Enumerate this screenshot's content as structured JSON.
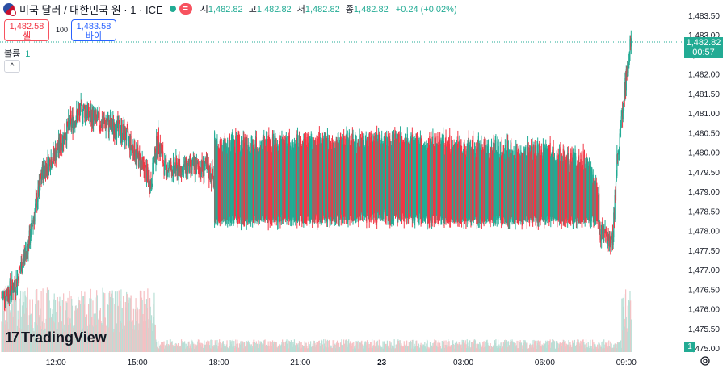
{
  "header": {
    "title": "미국 달러 / 대한민국 원 · 1 · ICE",
    "eq_symbol": "=",
    "open_label": "시",
    "open": "1,482.82",
    "high_label": "고",
    "high": "1,482.82",
    "low_label": "저",
    "low": "1,482.82",
    "close_label": "종",
    "close": "1,482.82",
    "change": "+0.24 (+0.02%)"
  },
  "trade": {
    "sell_price": "1,482.58",
    "sell_label": "셀",
    "buy_price": "1,483.58",
    "buy_label": "바이",
    "quantity": "100"
  },
  "volume_indicator": {
    "label": "볼륨",
    "value": "1"
  },
  "price_tag": {
    "price": "1,482.82",
    "countdown": "00:57"
  },
  "volume_tag": "1",
  "branding": {
    "logo_text": "TradingView"
  },
  "colors": {
    "up": "#22ab94",
    "down": "#f23645",
    "price_line": "#22ab94",
    "volume_up": "#b9dfd6",
    "volume_down": "#f6c0c3"
  },
  "chart_data": {
    "type": "candlestick",
    "interval": "1 minute",
    "y_axis": {
      "min": 1475.0,
      "max": 1483.5,
      "ticks": [
        "1,483.50",
        "1,483.00",
        "1,482.50",
        "1,482.00",
        "1,481.50",
        "1,481.00",
        "1,480.50",
        "1,480.00",
        "1,479.50",
        "1,479.00",
        "1,478.50",
        "1,478.00",
        "1,477.50",
        "1,477.00",
        "1,476.50",
        "1,476.00",
        "1,475.50",
        "1,475.00"
      ]
    },
    "x_axis": {
      "ticks": [
        "12:00",
        "15:00",
        "18:00",
        "21:00",
        "23",
        "03:00",
        "06:00",
        "09:00"
      ],
      "bold_ticks": [
        "23"
      ]
    },
    "last_price": 1482.82,
    "price_path": [
      {
        "t": "10:00",
        "v": 1476.3
      },
      {
        "t": "10:30",
        "v": 1476.6
      },
      {
        "t": "11:00",
        "v": 1477.7
      },
      {
        "t": "11:30",
        "v": 1479.5
      },
      {
        "t": "12:00",
        "v": 1480.0
      },
      {
        "t": "12:30",
        "v": 1480.7
      },
      {
        "t": "13:00",
        "v": 1481.1
      },
      {
        "t": "13:30",
        "v": 1480.8
      },
      {
        "t": "14:00",
        "v": 1480.7
      },
      {
        "t": "14:30",
        "v": 1480.5
      },
      {
        "t": "15:00",
        "v": 1479.9
      },
      {
        "t": "15:30",
        "v": 1479.2
      },
      {
        "t": "15:45",
        "v": 1480.4
      },
      {
        "t": "16:00",
        "v": 1479.6
      },
      {
        "t": "16:30",
        "v": 1479.6
      },
      {
        "t": "17:00",
        "v": 1479.6
      },
      {
        "t": "17:30",
        "v": 1479.6
      },
      {
        "t": "18:00",
        "v": 1479.2
      },
      {
        "t": "21:00",
        "v": 1479.3
      },
      {
        "t": "00:00",
        "v": 1479.4
      },
      {
        "t": "03:00",
        "v": 1479.2
      },
      {
        "t": "06:00",
        "v": 1479.0
      },
      {
        "t": "07:30",
        "v": 1478.8
      },
      {
        "t": "08:10",
        "v": 1477.8
      },
      {
        "t": "08:30",
        "v": 1477.8
      },
      {
        "t": "08:40",
        "v": 1479.8
      },
      {
        "t": "09:00",
        "v": 1481.9
      },
      {
        "t": "09:10",
        "v": 1482.8
      }
    ],
    "choppy_band": {
      "from": "17:50",
      "to": "08:00",
      "low": 1478.2,
      "high": 1480.5
    }
  }
}
